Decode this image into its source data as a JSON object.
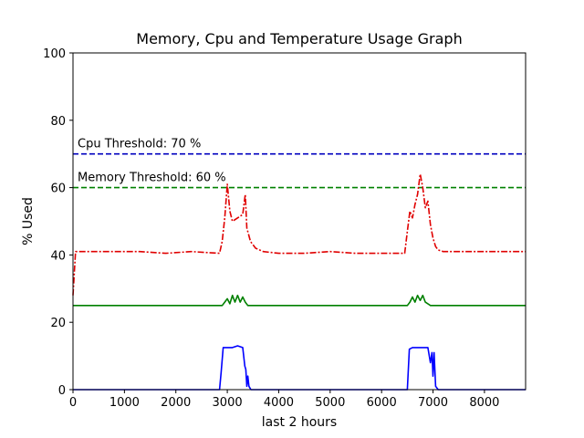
{
  "chart_data": {
    "type": "line",
    "title": "Memory, Cpu and Temperature Usage Graph",
    "xlabel": "last 2 hours",
    "ylabel": "% Used",
    "xlim": [
      0,
      8800
    ],
    "ylim": [
      0,
      100
    ],
    "xticks": [
      0,
      1000,
      2000,
      3000,
      4000,
      5000,
      6000,
      7000,
      8000
    ],
    "yticks": [
      0,
      20,
      40,
      60,
      80,
      100
    ],
    "grid": false,
    "legend": "none",
    "thresholds": [
      {
        "label": "Cpu Threshold: 70 %",
        "value": 70,
        "color": "#0000bf"
      },
      {
        "label": "Memory Threshold: 60 %",
        "value": 60,
        "color": "#008000"
      }
    ],
    "series": [
      {
        "color": "#e00000",
        "style": "dashdot",
        "x": [
          0,
          50,
          300,
          800,
          1300,
          1800,
          2300,
          2850,
          2900,
          2950,
          3000,
          3050,
          3100,
          3200,
          3300,
          3350,
          3380,
          3450,
          3550,
          3700,
          4000,
          4500,
          5000,
          5500,
          6000,
          6450,
          6500,
          6550,
          6600,
          6650,
          6700,
          6750,
          6800,
          6850,
          6900,
          6950,
          7000,
          7050,
          7100,
          7200,
          7400,
          7800,
          8200,
          8500,
          8800
        ],
        "y": [
          28,
          41,
          41,
          41,
          41,
          40.5,
          41,
          40.5,
          44,
          51,
          61,
          53,
          50,
          51,
          52,
          58,
          48,
          44,
          42,
          41,
          40.5,
          40.5,
          41,
          40.5,
          40.5,
          40.5,
          47,
          53,
          51,
          55,
          58,
          64,
          60,
          54,
          56,
          49,
          45,
          42.5,
          41.5,
          41,
          41,
          41,
          41,
          41,
          41
        ]
      },
      {
        "color": "#008000",
        "style": "solid",
        "x": [
          0,
          2900,
          2950,
          3000,
          3050,
          3100,
          3150,
          3200,
          3250,
          3300,
          3350,
          3400,
          3450,
          4000,
          6500,
          6550,
          6600,
          6650,
          6700,
          6750,
          6800,
          6850,
          6900,
          6950,
          7000,
          7500,
          8800
        ],
        "y": [
          25,
          25,
          26,
          27,
          25.5,
          28,
          26,
          28,
          26,
          27.5,
          26,
          25,
          25,
          25,
          25,
          26,
          27.5,
          26,
          28,
          26.5,
          28,
          26,
          25.5,
          25,
          25,
          25,
          25
        ]
      },
      {
        "color": "#0000ff",
        "style": "solid",
        "x": [
          0,
          1000,
          2000,
          2850,
          2880,
          2920,
          3000,
          3100,
          3200,
          3300,
          3340,
          3360,
          3380,
          3400,
          3420,
          3460,
          4000,
          5000,
          6000,
          6500,
          6540,
          6600,
          6700,
          6800,
          6900,
          6950,
          6980,
          7000,
          7020,
          7050,
          7100,
          8000,
          8800
        ],
        "y": [
          0,
          0,
          0,
          0,
          5,
          12.5,
          12.5,
          12.5,
          13,
          12.5,
          7,
          6,
          1,
          4,
          1,
          0,
          0,
          0,
          0,
          0,
          12,
          12.5,
          12.5,
          12.5,
          12.5,
          8,
          11,
          4,
          11,
          1,
          0,
          0,
          0
        ]
      }
    ]
  }
}
